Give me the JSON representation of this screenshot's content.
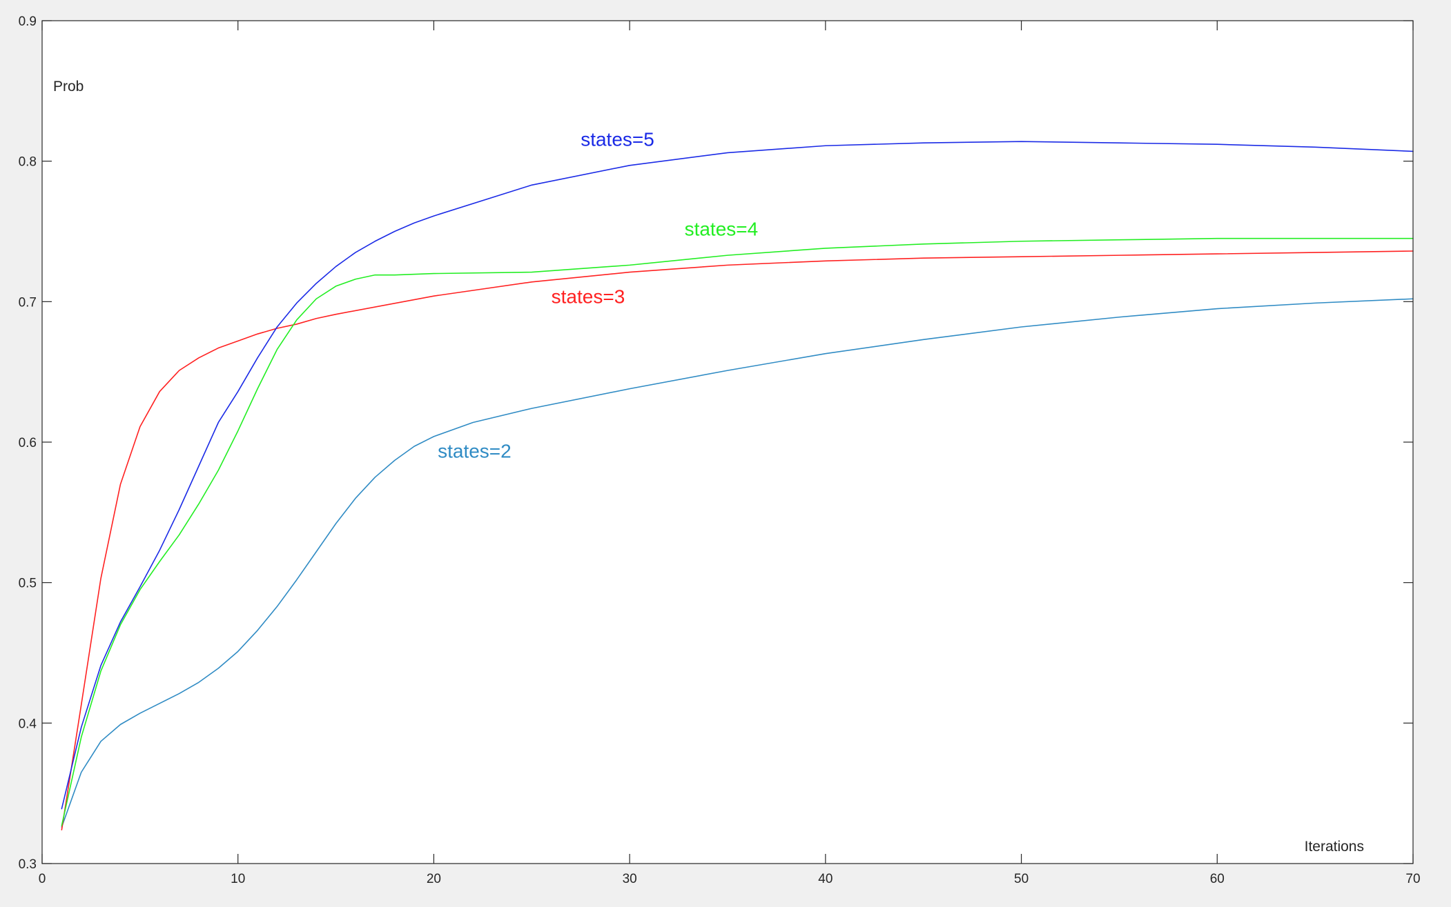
{
  "chart_data": {
    "type": "line",
    "title": "",
    "xlabel": "Iterations",
    "ylabel": "Prob",
    "xlim": [
      0,
      70
    ],
    "ylim": [
      0.3,
      0.9
    ],
    "x_ticks": [
      "0",
      "10",
      "20",
      "30",
      "40",
      "50",
      "60",
      "70"
    ],
    "y_ticks": [
      "0.3",
      "0.4",
      "0.5",
      "0.6",
      "0.7",
      "0.8",
      "0.9"
    ],
    "grid": false,
    "legend": "none (inline text labels)",
    "series": [
      {
        "name": "states=2",
        "color": "#2f8bc4",
        "label_position": [
          20.2,
          0.589
        ],
        "points": [
          [
            1,
            0.326
          ],
          [
            2,
            0.365
          ],
          [
            3,
            0.387
          ],
          [
            4,
            0.399
          ],
          [
            5,
            0.407
          ],
          [
            6,
            0.414
          ],
          [
            7,
            0.421
          ],
          [
            8,
            0.429
          ],
          [
            9,
            0.439
          ],
          [
            10,
            0.451
          ],
          [
            11,
            0.466
          ],
          [
            12,
            0.483
          ],
          [
            13,
            0.502
          ],
          [
            14,
            0.522
          ],
          [
            15,
            0.542
          ],
          [
            16,
            0.56
          ],
          [
            17,
            0.575
          ],
          [
            18,
            0.587
          ],
          [
            19,
            0.597
          ],
          [
            20,
            0.604
          ],
          [
            22,
            0.614
          ],
          [
            25,
            0.624
          ],
          [
            30,
            0.638
          ],
          [
            35,
            0.651
          ],
          [
            40,
            0.663
          ],
          [
            45,
            0.673
          ],
          [
            50,
            0.682
          ],
          [
            55,
            0.689
          ],
          [
            60,
            0.695
          ],
          [
            65,
            0.699
          ],
          [
            70,
            0.702
          ]
        ]
      },
      {
        "name": "states=3",
        "color": "#ff2020",
        "label_position": [
          26.0,
          0.699
        ],
        "points": [
          [
            1,
            0.324
          ],
          [
            2,
            0.413
          ],
          [
            3,
            0.503
          ],
          [
            4,
            0.57
          ],
          [
            5,
            0.611
          ],
          [
            6,
            0.636
          ],
          [
            7,
            0.651
          ],
          [
            8,
            0.66
          ],
          [
            9,
            0.667
          ],
          [
            10,
            0.672
          ],
          [
            11,
            0.677
          ],
          [
            12,
            0.681
          ],
          [
            13,
            0.684
          ],
          [
            14,
            0.688
          ],
          [
            15,
            0.691
          ],
          [
            20,
            0.704
          ],
          [
            25,
            0.714
          ],
          [
            30,
            0.721
          ],
          [
            35,
            0.726
          ],
          [
            40,
            0.729
          ],
          [
            45,
            0.731
          ],
          [
            50,
            0.732
          ],
          [
            55,
            0.733
          ],
          [
            60,
            0.734
          ],
          [
            65,
            0.735
          ],
          [
            70,
            0.736
          ]
        ]
      },
      {
        "name": "states=4",
        "color": "#22ee22",
        "label_position": [
          32.8,
          0.747
        ],
        "points": [
          [
            1,
            0.327
          ],
          [
            2,
            0.39
          ],
          [
            3,
            0.437
          ],
          [
            4,
            0.47
          ],
          [
            5,
            0.495
          ],
          [
            6,
            0.515
          ],
          [
            7,
            0.534
          ],
          [
            8,
            0.556
          ],
          [
            9,
            0.58
          ],
          [
            10,
            0.608
          ],
          [
            11,
            0.638
          ],
          [
            12,
            0.666
          ],
          [
            13,
            0.687
          ],
          [
            14,
            0.702
          ],
          [
            15,
            0.711
          ],
          [
            16,
            0.716
          ],
          [
            17,
            0.719
          ],
          [
            18,
            0.719
          ],
          [
            20,
            0.72
          ],
          [
            25,
            0.721
          ],
          [
            30,
            0.726
          ],
          [
            35,
            0.733
          ],
          [
            40,
            0.738
          ],
          [
            45,
            0.741
          ],
          [
            50,
            0.743
          ],
          [
            55,
            0.744
          ],
          [
            60,
            0.745
          ],
          [
            65,
            0.745
          ],
          [
            70,
            0.745
          ]
        ]
      },
      {
        "name": "states=5",
        "color": "#1a2ae6",
        "label_position": [
          27.5,
          0.811
        ],
        "points": [
          [
            1,
            0.339
          ],
          [
            2,
            0.397
          ],
          [
            3,
            0.441
          ],
          [
            4,
            0.472
          ],
          [
            5,
            0.497
          ],
          [
            6,
            0.523
          ],
          [
            7,
            0.552
          ],
          [
            8,
            0.583
          ],
          [
            9,
            0.614
          ],
          [
            10,
            0.636
          ],
          [
            11,
            0.66
          ],
          [
            12,
            0.682
          ],
          [
            13,
            0.699
          ],
          [
            14,
            0.713
          ],
          [
            15,
            0.725
          ],
          [
            16,
            0.735
          ],
          [
            17,
            0.743
          ],
          [
            18,
            0.75
          ],
          [
            19,
            0.756
          ],
          [
            20,
            0.761
          ],
          [
            25,
            0.783
          ],
          [
            30,
            0.797
          ],
          [
            35,
            0.806
          ],
          [
            40,
            0.811
          ],
          [
            45,
            0.813
          ],
          [
            50,
            0.814
          ],
          [
            55,
            0.813
          ],
          [
            60,
            0.812
          ],
          [
            65,
            0.81
          ],
          [
            70,
            0.807
          ]
        ]
      }
    ]
  }
}
